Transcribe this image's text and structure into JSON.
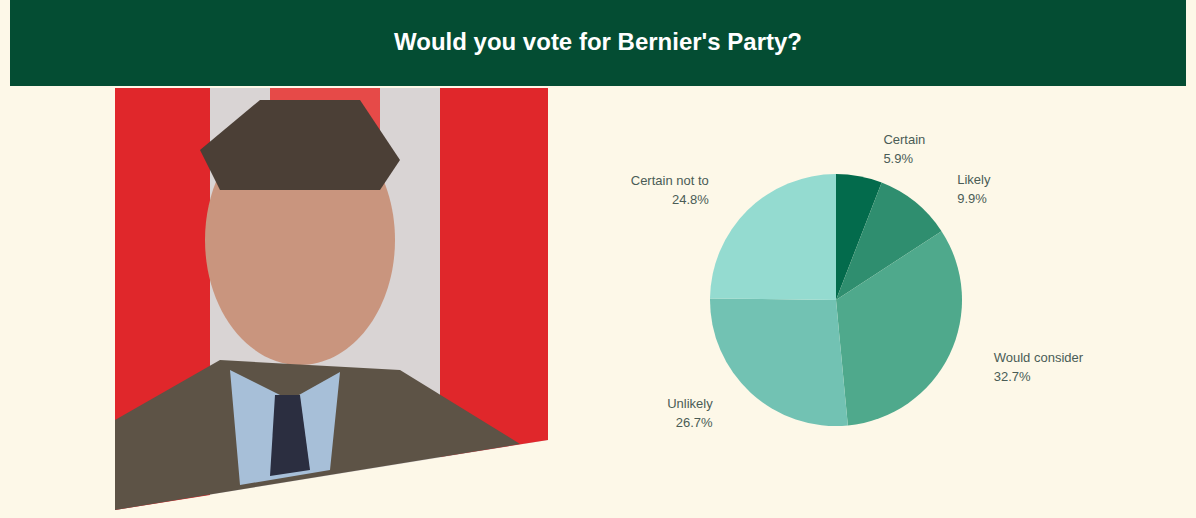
{
  "chart_data": {
    "type": "pie",
    "title": "Would you vote for Bernier's Party?",
    "categories": [
      "Certain",
      "Likely",
      "Would consider",
      "Unlikely",
      "Certain not to"
    ],
    "values": [
      5.9,
      9.9,
      32.7,
      26.7,
      24.8
    ],
    "value_labels": [
      "5.9%",
      "9.9%",
      "32.7%",
      "26.7%",
      "24.8%"
    ],
    "colors": [
      "#036b4c",
      "#2f8e6f",
      "#4fa98c",
      "#72c2b3",
      "#94dbd0"
    ],
    "data_labels": true
  }
}
